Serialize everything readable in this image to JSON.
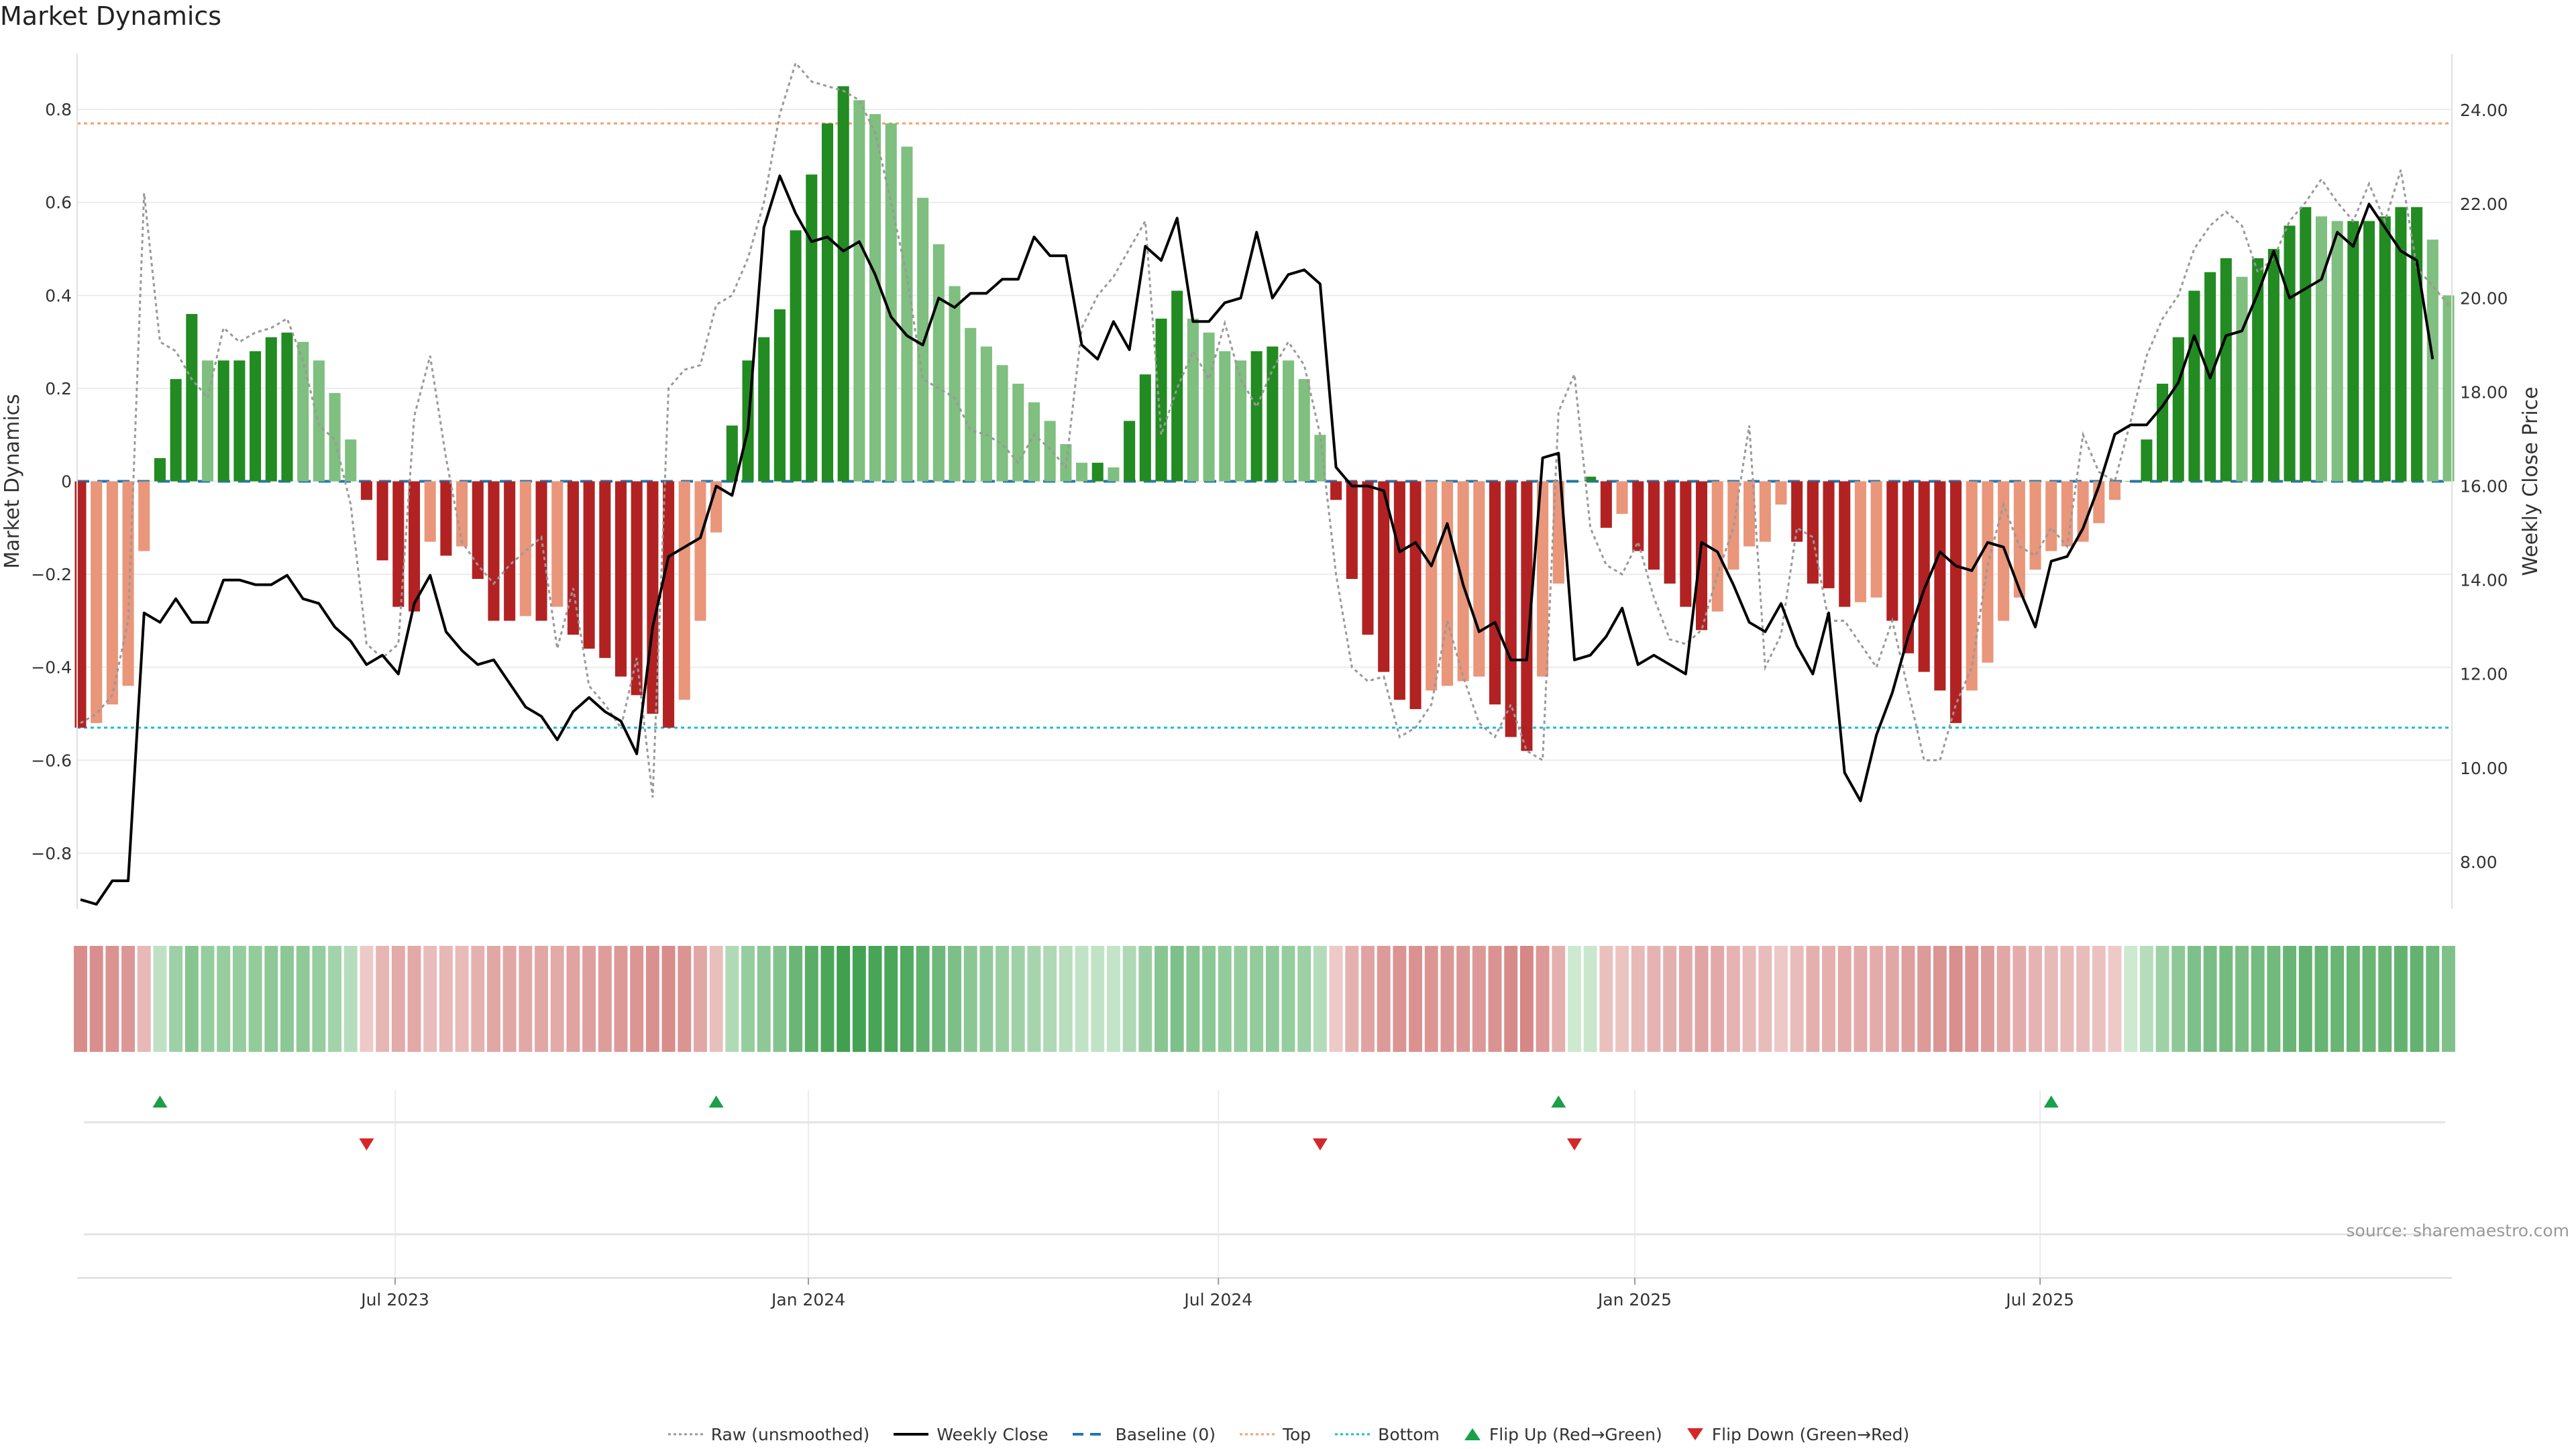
{
  "title": "Market Dynamics",
  "source": "source: sharemaestro.com",
  "colors": {
    "strong_up": "#228b22",
    "weak_up": "#7fbf7f",
    "strong_down": "#b22222",
    "weak_down": "#e9967a",
    "raw": "#999999",
    "close": "#000000",
    "baseline": "#1f77b4",
    "top": "#ff7f0e",
    "bottom": "#17becf",
    "flip_up": "#1aa04a",
    "flip_down": "#d62728"
  },
  "legend": [
    {
      "key": "raw",
      "label": "Raw (unsmoothed)"
    },
    {
      "key": "close",
      "label": "Weekly Close"
    },
    {
      "key": "baseline",
      "label": "Baseline (0)"
    },
    {
      "key": "top",
      "label": "Top"
    },
    {
      "key": "bottom",
      "label": "Bottom"
    },
    {
      "key": "flip_up",
      "label": "Flip Up (Red→Green)"
    },
    {
      "key": "flip_down",
      "label": "Flip Down (Green→Red)"
    }
  ],
  "chart_data": {
    "type": "bar",
    "title": "Market Dynamics",
    "ylabel": "Market Dynamics",
    "y2label": "Weekly Close Price",
    "ylim": [
      -0.92,
      0.92
    ],
    "y2lim": [
      7.0,
      25.2
    ],
    "yticks": [
      -0.8,
      -0.6,
      -0.4,
      -0.2,
      0,
      0.2,
      0.4,
      0.6,
      0.8
    ],
    "ytick_labels": [
      "−0.8",
      "−0.6",
      "−0.4",
      "−0.2",
      "0",
      "0.2",
      "0.4",
      "0.6",
      "0.8"
    ],
    "y2ticks": [
      8,
      10,
      12,
      14,
      16,
      18,
      20,
      22,
      24
    ],
    "y2tick_labels": [
      "8.00",
      "10.00",
      "12.00",
      "14.00",
      "16.00",
      "18.00",
      "20.00",
      "22.00",
      "24.00"
    ],
    "x_dates": {
      "start": "2023-02-20",
      "end": "2025-11-03",
      "interval": "weekly"
    },
    "xticks": [
      {
        "pos": 19.8,
        "label": "Jul 2023"
      },
      {
        "pos": 45.8,
        "label": "Jan 2024"
      },
      {
        "pos": 71.6,
        "label": "Jul 2024"
      },
      {
        "pos": 97.8,
        "label": "Jan 2025"
      },
      {
        "pos": 123.3,
        "label": "Jul 2025"
      }
    ],
    "top_line": 0.77,
    "bottom_line": -0.53,
    "series": [
      {
        "name": "Market Dynamics",
        "type": "bar",
        "values": [
          -0.53,
          -0.52,
          -0.48,
          -0.44,
          -0.15,
          0.05,
          0.22,
          0.36,
          0.26,
          0.26,
          0.26,
          0.28,
          0.31,
          0.32,
          0.3,
          0.26,
          0.19,
          0.09,
          -0.04,
          -0.17,
          -0.27,
          -0.28,
          -0.13,
          -0.16,
          -0.14,
          -0.21,
          -0.3,
          -0.3,
          -0.29,
          -0.3,
          -0.27,
          -0.33,
          -0.36,
          -0.38,
          -0.42,
          -0.46,
          -0.5,
          -0.53,
          -0.47,
          -0.3,
          -0.11,
          0.12,
          0.26,
          0.31,
          0.37,
          0.54,
          0.66,
          0.77,
          0.85,
          0.82,
          0.79,
          0.77,
          0.72,
          0.61,
          0.51,
          0.42,
          0.33,
          0.29,
          0.25,
          0.21,
          0.17,
          0.13,
          0.08,
          0.04,
          0.04,
          0.03,
          0.13,
          0.23,
          0.35,
          0.41,
          0.35,
          0.32,
          0.28,
          0.26,
          0.28,
          0.29,
          0.26,
          0.22,
          0.1,
          -0.04,
          -0.21,
          -0.33,
          -0.41,
          -0.47,
          -0.49,
          -0.45,
          -0.44,
          -0.43,
          -0.42,
          -0.48,
          -0.55,
          -0.58,
          -0.42,
          -0.22,
          0.0,
          0.01,
          -0.1,
          -0.07,
          -0.15,
          -0.19,
          -0.22,
          -0.27,
          -0.32,
          -0.28,
          -0.19,
          -0.14,
          -0.13,
          -0.05,
          -0.13,
          -0.22,
          -0.23,
          -0.27,
          -0.26,
          -0.25,
          -0.3,
          -0.37,
          -0.41,
          -0.45,
          -0.52,
          -0.45,
          -0.39,
          -0.3,
          -0.25,
          -0.19,
          -0.15,
          -0.14,
          -0.13,
          -0.09,
          -0.04,
          0.0,
          0.09,
          0.21,
          0.31,
          0.41,
          0.45,
          0.48,
          0.44,
          0.48,
          0.5,
          0.55,
          0.59,
          0.57,
          0.56,
          0.56,
          0.56,
          0.57,
          0.59,
          0.59,
          0.52,
          0.4
        ]
      },
      {
        "name": "Raw (unsmoothed)",
        "type": "line",
        "values": [
          -0.52,
          -0.5,
          -0.46,
          -0.3,
          0.62,
          0.3,
          0.28,
          0.22,
          0.18,
          0.33,
          0.3,
          0.32,
          0.33,
          0.35,
          0.26,
          0.12,
          0.09,
          -0.05,
          -0.35,
          -0.38,
          -0.35,
          0.14,
          0.27,
          0.05,
          -0.13,
          -0.18,
          -0.22,
          -0.18,
          -0.15,
          -0.12,
          -0.36,
          -0.23,
          -0.44,
          -0.48,
          -0.53,
          -0.38,
          -0.68,
          0.2,
          0.24,
          0.25,
          0.38,
          0.4,
          0.48,
          0.6,
          0.79,
          0.9,
          0.86,
          0.85,
          0.84,
          0.82,
          0.75,
          0.6,
          0.44,
          0.22,
          0.2,
          0.18,
          0.11,
          0.1,
          0.08,
          0.04,
          0.1,
          0.07,
          0.03,
          0.33,
          0.4,
          0.44,
          0.5,
          0.56,
          0.1,
          0.2,
          0.28,
          0.22,
          0.34,
          0.22,
          0.16,
          0.24,
          0.3,
          0.25,
          0.1,
          -0.2,
          -0.4,
          -0.43,
          -0.42,
          -0.55,
          -0.53,
          -0.48,
          -0.3,
          -0.42,
          -0.52,
          -0.55,
          -0.48,
          -0.58,
          -0.6,
          0.15,
          0.23,
          -0.1,
          -0.18,
          -0.2,
          -0.13,
          -0.25,
          -0.34,
          -0.35,
          -0.32,
          -0.2,
          -0.1,
          0.12,
          -0.4,
          -0.33,
          -0.1,
          -0.12,
          -0.3,
          -0.3,
          -0.35,
          -0.4,
          -0.3,
          -0.45,
          -0.6,
          -0.6,
          -0.48,
          -0.4,
          -0.18,
          -0.05,
          -0.14,
          -0.16,
          -0.1,
          -0.14,
          0.1,
          0.02,
          0.0,
          0.13,
          0.27,
          0.35,
          0.4,
          0.5,
          0.55,
          0.58,
          0.55,
          0.45,
          0.48,
          0.56,
          0.6,
          0.65,
          0.6,
          0.56,
          0.64,
          0.56,
          0.67,
          0.46,
          0.42,
          0.38
        ]
      },
      {
        "name": "Weekly Close",
        "type": "line",
        "axis": "right",
        "values": [
          7.2,
          7.1,
          7.6,
          7.6,
          13.3,
          13.1,
          13.6,
          13.1,
          13.1,
          14.0,
          14.0,
          13.9,
          13.9,
          14.1,
          13.6,
          13.5,
          13.0,
          12.7,
          12.2,
          12.4,
          12.0,
          13.5,
          14.1,
          12.9,
          12.5,
          12.2,
          12.3,
          11.8,
          11.3,
          11.1,
          10.6,
          11.2,
          11.5,
          11.2,
          11.0,
          10.3,
          13.0,
          14.5,
          14.7,
          14.9,
          16.0,
          15.8,
          17.2,
          21.5,
          22.6,
          21.8,
          21.2,
          21.3,
          21.0,
          21.2,
          20.5,
          19.6,
          19.2,
          19.0,
          20.0,
          19.8,
          20.1,
          20.1,
          20.4,
          20.4,
          21.3,
          20.9,
          20.9,
          19.0,
          18.7,
          19.5,
          18.9,
          21.1,
          20.8,
          21.7,
          19.5,
          19.5,
          19.9,
          20.0,
          21.4,
          20.0,
          20.5,
          20.6,
          20.3,
          16.4,
          16.0,
          16.0,
          15.9,
          14.6,
          14.8,
          14.3,
          15.2,
          13.9,
          12.9,
          13.1,
          12.3,
          12.3,
          16.6,
          16.7,
          12.3,
          12.4,
          12.8,
          13.4,
          12.2,
          12.4,
          12.2,
          12.0,
          14.8,
          14.6,
          13.9,
          13.1,
          12.9,
          13.5,
          12.6,
          12.0,
          13.3,
          9.9,
          9.3,
          10.7,
          11.6,
          12.8,
          13.8,
          14.6,
          14.3,
          14.2,
          14.8,
          14.7,
          13.8,
          13.0,
          14.4,
          14.5,
          15.1,
          16.0,
          17.1,
          17.3,
          17.3,
          17.7,
          18.2,
          19.2,
          18.3,
          19.2,
          19.3,
          20.1,
          21.0,
          20.0,
          20.2,
          20.4,
          21.4,
          21.1,
          22.0,
          21.5,
          21.0,
          20.8,
          18.7
        ]
      }
    ],
    "heat_strip": {
      "description": "color intensity follows bar values",
      "source_series": "Market Dynamics"
    },
    "flips": {
      "up": [
        5,
        40,
        93,
        124
      ],
      "down": [
        18,
        78,
        94
      ]
    }
  }
}
